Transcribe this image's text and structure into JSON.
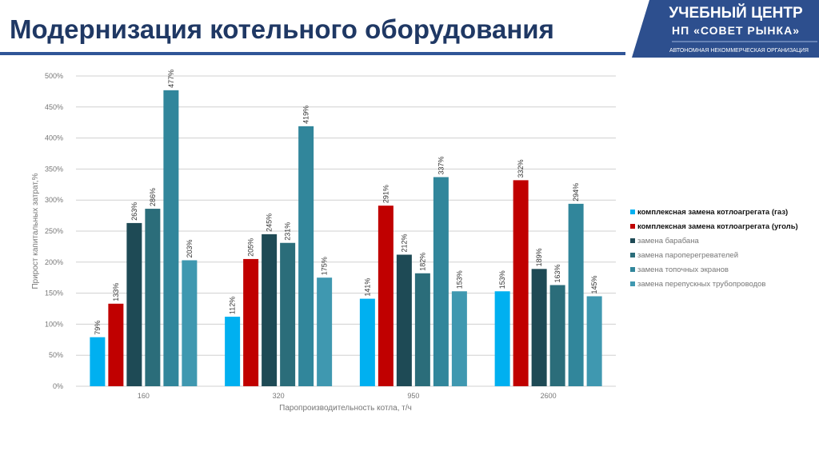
{
  "header": {
    "title": "Модернизация котельного оборудования"
  },
  "logo": {
    "line1": "УЧЕБНЫЙ ЦЕНТР",
    "line2": "НП «СОВЕТ РЫНКА»",
    "line3": "АВТОНОМНАЯ НЕКОММЕРЧЕСКАЯ ОРГАНИЗАЦИЯ"
  },
  "chart_data": {
    "type": "bar",
    "xlabel": "Паропроизводительность котла, т/ч",
    "ylabel": "Прирост капитальных затрат,%",
    "categories": [
      "160",
      "320",
      "950",
      "2600"
    ],
    "ylim": [
      0,
      500
    ],
    "yticks": [
      "0%",
      "50%",
      "100%",
      "150%",
      "200%",
      "250%",
      "300%",
      "350%",
      "400%",
      "450%",
      "500%"
    ],
    "grid": true,
    "legend_position": "right",
    "series": [
      {
        "name": "комплексная замена котлоагрегата (газ)",
        "color": "#00b0f0",
        "values": [
          79,
          112,
          141,
          153
        ],
        "bold": true
      },
      {
        "name": "комплексная замена котлоагрегата (уголь)",
        "color": "#c00000",
        "values": [
          133,
          205,
          291,
          332
        ],
        "bold": true
      },
      {
        "name": "замена барабана",
        "color": "#1e4a55",
        "values": [
          263,
          245,
          212,
          189
        ]
      },
      {
        "name": "замена пароперегревателей",
        "color": "#2b6d7a",
        "values": [
          286,
          231,
          182,
          163
        ]
      },
      {
        "name": "замена топочных экранов",
        "color": "#31869b",
        "values": [
          477,
          419,
          337,
          294
        ]
      },
      {
        "name": "замена перепускных трубопроводов",
        "color": "#3f98b0",
        "values": [
          203,
          175,
          153,
          145
        ]
      }
    ]
  }
}
